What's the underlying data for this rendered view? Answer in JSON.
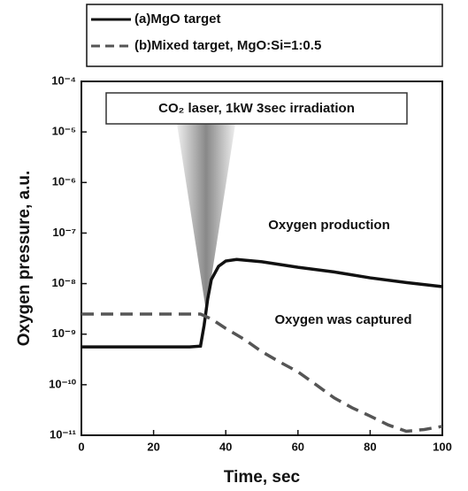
{
  "chart_data": {
    "type": "line",
    "xlabel": "Time, sec",
    "ylabel": "Oxygen pressure, a.u.",
    "annotations": [
      "CO₂ laser, 1kW 3sec irradiation",
      "Oxygen production",
      "Oxygen was captured"
    ],
    "xlim": [
      0,
      100
    ],
    "xticks": [
      0,
      20,
      40,
      60,
      80,
      100
    ],
    "ylim": [
      1e-11,
      0.0001
    ],
    "ylog": true,
    "grid": false,
    "legend": "top",
    "yticks": [
      {
        "value": 1e-11,
        "label": "10⁻¹¹"
      },
      {
        "value": 1e-10,
        "label": "10⁻¹⁰"
      },
      {
        "value": 1e-09,
        "label": "10⁻⁹"
      },
      {
        "value": 1e-08,
        "label": "10⁻⁸"
      },
      {
        "value": 1e-07,
        "label": "10⁻⁷"
      },
      {
        "value": 1e-06,
        "label": "10⁻⁶"
      },
      {
        "value": 1e-05,
        "label": "10⁻⁵"
      },
      {
        "value": 0.0001,
        "label": "10⁻⁴"
      }
    ],
    "series": [
      {
        "name": "(a)MgO target",
        "color": "#111111",
        "linestyle": "solid",
        "x": [
          0,
          10,
          20,
          30,
          33,
          34,
          35,
          36,
          38,
          40,
          43,
          50,
          60,
          70,
          80,
          90,
          100
        ],
        "values": [
          5.6e-10,
          5.6e-10,
          5.6e-10,
          5.6e-10,
          5.8e-10,
          1.5e-09,
          5e-09,
          1.2e-08,
          2.2e-08,
          2.8e-08,
          3e-08,
          2.7e-08,
          2.1e-08,
          1.7e-08,
          1.3e-08,
          1.05e-08,
          8.7e-09
        ]
      },
      {
        "name": "(b)Mixed target, MgO:Si=1:0.5",
        "color": "#555555",
        "linestyle": "dashed",
        "x": [
          0,
          10,
          20,
          30,
          33,
          36,
          40,
          45,
          50,
          55,
          60,
          65,
          70,
          75,
          80,
          85,
          90,
          95,
          100
        ],
        "values": [
          2.5e-09,
          2.5e-09,
          2.5e-09,
          2.5e-09,
          2.5e-09,
          2e-09,
          1.3e-09,
          8e-10,
          4.5e-10,
          2.8e-10,
          1.8e-10,
          1e-10,
          5.5e-11,
          3.5e-11,
          2.4e-11,
          1.6e-11,
          1.2e-11,
          1.3e-11,
          1.5e-11
        ]
      }
    ]
  }
}
